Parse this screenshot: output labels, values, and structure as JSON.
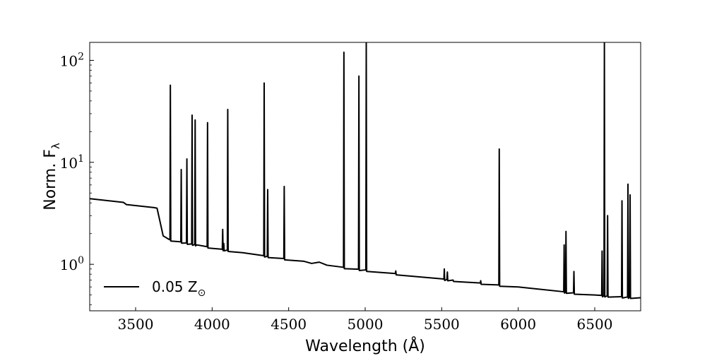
{
  "chart_data": {
    "type": "line",
    "title": "",
    "xlabel": "Wavelength (Å)",
    "ylabel": "Norm. F",
    "ylabel_subscript": "λ",
    "xlim": [
      3200,
      6800
    ],
    "ylim": [
      0.35,
      150
    ],
    "yscale": "log",
    "grid": false,
    "x_ticks": [
      3500,
      4000,
      4500,
      5000,
      5500,
      6000,
      6500
    ],
    "y_ticks": [
      {
        "value": 1,
        "base": "10",
        "exp": "0"
      },
      {
        "value": 10,
        "base": "10",
        "exp": "1"
      },
      {
        "value": 100,
        "base": "10",
        "exp": "2"
      }
    ],
    "legend": {
      "location": "lower-left",
      "label": "0.05 Z",
      "label_subscript": "⊙"
    },
    "series": [
      {
        "name": "0.05 Z⊙",
        "color": "#000000",
        "continuum": [
          [
            3200,
            4.4
          ],
          [
            3420,
            4.05
          ],
          [
            3440,
            3.85
          ],
          [
            3620,
            3.6
          ],
          [
            3640,
            3.55
          ],
          [
            3660,
            2.6
          ],
          [
            3680,
            1.9
          ],
          [
            3720,
            1.75
          ],
          [
            3900,
            1.55
          ],
          [
            4200,
            1.3
          ],
          [
            4600,
            1.07
          ],
          [
            4650,
            1.02
          ],
          [
            4700,
            1.05
          ],
          [
            4750,
            0.98
          ],
          [
            5000,
            0.88
          ],
          [
            5500,
            0.72
          ],
          [
            6000,
            0.6
          ],
          [
            6500,
            0.5
          ],
          [
            6800,
            0.47
          ]
        ],
        "emission_lines": [
          {
            "x": 3727,
            "peak": 57
          },
          {
            "x": 3798,
            "peak": 8.5
          },
          {
            "x": 3835,
            "peak": 10.8
          },
          {
            "x": 3869,
            "peak": 29
          },
          {
            "x": 3889,
            "peak": 26
          },
          {
            "x": 3970,
            "peak": 24.5
          },
          {
            "x": 4069,
            "peak": 2.2
          },
          {
            "x": 4076,
            "peak": 1.6
          },
          {
            "x": 4102,
            "peak": 33
          },
          {
            "x": 4340,
            "peak": 60
          },
          {
            "x": 4363,
            "peak": 5.4
          },
          {
            "x": 4471,
            "peak": 5.8
          },
          {
            "x": 4861,
            "peak": 120
          },
          {
            "x": 4959,
            "peak": 70
          },
          {
            "x": 5007,
            "peak": 150
          },
          {
            "x": 5200,
            "peak": 0.86
          },
          {
            "x": 5517,
            "peak": 0.9
          },
          {
            "x": 5537,
            "peak": 0.84
          },
          {
            "x": 5577,
            "peak": 0.68
          },
          {
            "x": 5755,
            "peak": 0.69
          },
          {
            "x": 5876,
            "peak": 13.5
          },
          {
            "x": 6300,
            "peak": 1.55
          },
          {
            "x": 6312,
            "peak": 2.1
          },
          {
            "x": 6364,
            "peak": 0.85
          },
          {
            "x": 6548,
            "peak": 1.35
          },
          {
            "x": 6563,
            "peak": 150
          },
          {
            "x": 6584,
            "peak": 3.0
          },
          {
            "x": 6678,
            "peak": 4.2
          },
          {
            "x": 6717,
            "peak": 6.1
          },
          {
            "x": 6731,
            "peak": 4.8
          }
        ]
      }
    ]
  }
}
